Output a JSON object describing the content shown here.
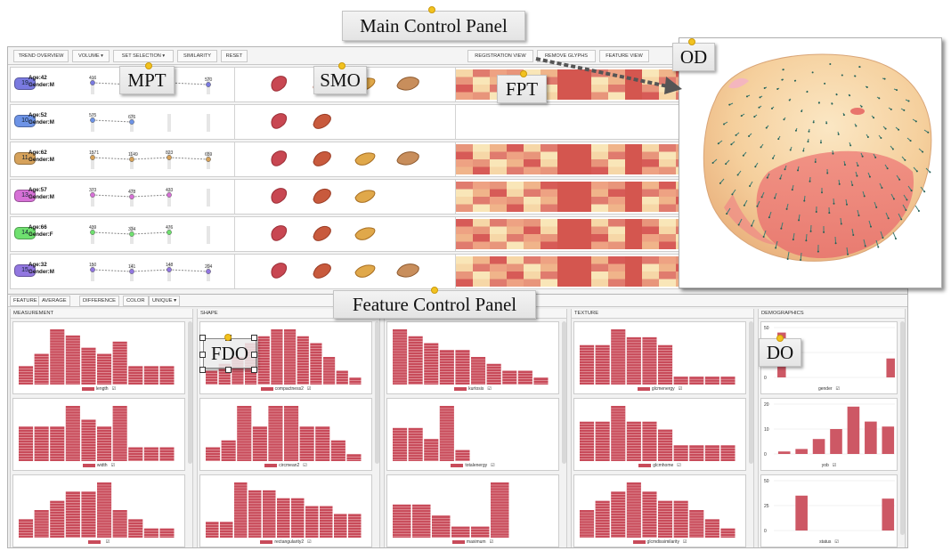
{
  "main_panel": {
    "title": "Main Control Panel",
    "toolbar_left": [
      "TREND OVERVIEW",
      "VOLUME ▾",
      "SET SELECTION ▾",
      "SIMILARITY",
      "RESET"
    ],
    "toolbar_right": [
      "REGISTRATION VIEW",
      "REMOVE GLYPHS",
      "FEATURE VIEW"
    ],
    "colors": {
      "purple": "#6e6ed8",
      "blue": "#5f86d8",
      "orange": "#cc9a55",
      "magenta": "#cc66cc",
      "green": "#6ed86e",
      "violet": "#8a6ed8"
    },
    "patients": [
      {
        "id": "19",
        "age": "Age:42",
        "gender": "Gender:M",
        "color": "#7a7ae0",
        "values": [
          "416",
          "",
          "",
          "570"
        ],
        "shape_count": 4
      },
      {
        "id": "10",
        "age": "Age:52",
        "gender": "Gender:M",
        "color": "#6d93e6",
        "values": [
          "575",
          "676"
        ],
        "shape_count": 2
      },
      {
        "id": "11",
        "age": "Age:62",
        "gender": "Gender:M",
        "color": "#d6a25b",
        "values": [
          "1571",
          "1149",
          "823",
          "659"
        ],
        "shape_count": 4
      },
      {
        "id": "13",
        "age": "Age:57",
        "gender": "Gender:M",
        "color": "#d671d6",
        "values": [
          "373",
          "478",
          "433"
        ],
        "shape_count": 3
      },
      {
        "id": "14",
        "age": "Age:66",
        "gender": "Gender:F",
        "color": "#6fe06f",
        "values": [
          "439",
          "334",
          "476"
        ],
        "shape_count": 3
      },
      {
        "id": "15",
        "age": "Age:32",
        "gender": "Gender:M",
        "color": "#9277e0",
        "values": [
          "150",
          "141",
          "148",
          "204"
        ],
        "shape_count": 4
      }
    ]
  },
  "callouts": {
    "main": "Main Control Panel",
    "od": "OD",
    "mpt": "MPT",
    "smo": "SMO",
    "fpt": "FPT",
    "feature": "Feature Control Panel",
    "fdo": "FDO",
    "do": "DO"
  },
  "feature_panel": {
    "title": "Feature Control Panel",
    "toolbar": [
      "FEATURE",
      "AVERAGE",
      "DIFFERENCE",
      "COLOR",
      "UNIQUE ▾"
    ],
    "columns": [
      {
        "heading": "MEASUREMENT",
        "plots": [
          {
            "label": "length",
            "bars": [
              3,
              5,
              9,
              8,
              6,
              5,
              7,
              3,
              3,
              3
            ]
          },
          {
            "label": "width",
            "bars": [
              5,
              5,
              5,
              8,
              6,
              5,
              8,
              2,
              2,
              2
            ]
          },
          {
            "label": "",
            "bars": [
              2,
              3,
              4,
              5,
              5,
              6,
              3,
              2,
              1,
              1
            ]
          }
        ]
      },
      {
        "heading": "SHAPE",
        "plots": [
          {
            "label": "compactness2",
            "bars": [
              2,
              3,
              4,
              6,
              7,
              8,
              8,
              7,
              6,
              4,
              2,
              1
            ]
          },
          {
            "label": "circmean2",
            "bars": [
              2,
              3,
              8,
              5,
              8,
              8,
              5,
              5,
              3,
              1
            ]
          },
          {
            "label": "rectangularity2",
            "bars": [
              2,
              2,
              7,
              6,
              6,
              5,
              5,
              4,
              4,
              3,
              3
            ]
          }
        ]
      },
      {
        "heading": "",
        "plots": [
          {
            "label": "kurtosis",
            "bars": [
              8,
              7,
              6,
              5,
              5,
              4,
              3,
              2,
              2,
              1
            ]
          },
          {
            "label": "totalenergy",
            "bars": [
              3,
              3,
              2,
              5,
              1,
              0,
              0,
              0,
              0,
              0
            ]
          },
          {
            "label": "maximum",
            "bars": [
              3,
              3,
              2,
              1,
              1,
              5,
              0,
              0
            ]
          }
        ]
      },
      {
        "heading": "TEXTURE",
        "plots": [
          {
            "label": "glcmenergy",
            "bars": [
              5,
              5,
              7,
              6,
              6,
              5,
              1,
              1,
              1,
              1
            ]
          },
          {
            "label": "glcmhome",
            "bars": [
              5,
              5,
              7,
              5,
              5,
              4,
              2,
              2,
              2,
              2
            ]
          },
          {
            "label": "glcmdissimilarity",
            "bars": [
              3,
              4,
              5,
              6,
              5,
              4,
              4,
              3,
              2,
              1
            ]
          }
        ]
      }
    ],
    "demographics": {
      "heading": "DEMOGRAPHICS",
      "plots": [
        {
          "label": "gender",
          "ticks": [
            "50",
            "25",
            "0"
          ],
          "bars": [
            45,
            0,
            0,
            0,
            0,
            0,
            0,
            0,
            0,
            19
          ]
        },
        {
          "label": "yob",
          "ticks": [
            "20",
            "10",
            "0"
          ],
          "bars": [
            1,
            2,
            6,
            10,
            19,
            13,
            11
          ]
        },
        {
          "label": "status",
          "ticks": [
            "50",
            "25",
            "0"
          ],
          "bars": [
            0,
            35,
            0,
            0,
            0,
            0,
            32
          ]
        }
      ]
    }
  }
}
